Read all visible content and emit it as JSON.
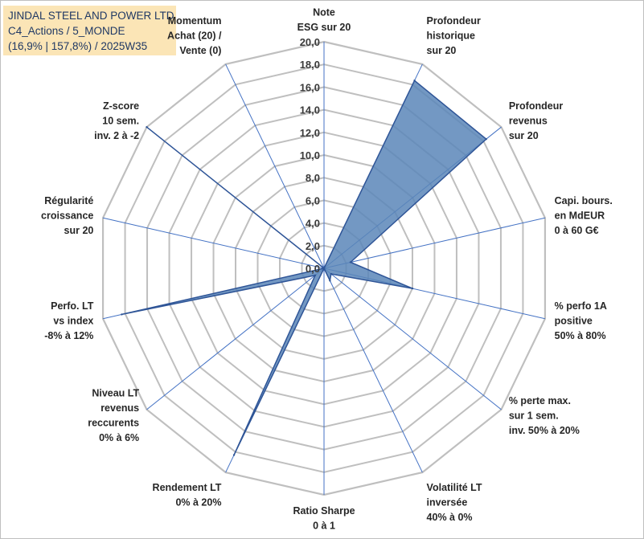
{
  "header": {
    "line1": "JINDAL STEEL AND POWER LTD",
    "line2": "C4_Actions / 5_MONDE",
    "line3": "(16,9% | 157,8%) / 2025W35"
  },
  "colors": {
    "grid": "#bfbfbf",
    "spoke": "#4472c4",
    "fill": "#5b86b8",
    "stroke": "#2f5597",
    "title_bg": "#fbe5b6"
  },
  "chart_data": {
    "type": "radar",
    "rmin": 0,
    "rmax": 20,
    "tick_step": 2,
    "tick_labels": [
      "0,0",
      "2,0",
      "4,0",
      "6,0",
      "8,0",
      "10,0",
      "12,0",
      "14,0",
      "16,0",
      "18,0",
      "20,0"
    ],
    "grid": true,
    "legend": "none",
    "axes": [
      {
        "label": [
          "Note",
          "ESG sur 20"
        ],
        "value": 0
      },
      {
        "label": [
          "Profondeur",
          "historique",
          "sur 20"
        ],
        "value": 18.4
      },
      {
        "label": [
          "Profondeur",
          "revenus",
          "sur 20"
        ],
        "value": 18.3
      },
      {
        "label": [
          "Capi. bours.",
          "en MdEUR",
          "0 à 60 G€"
        ],
        "value": 2.4
      },
      {
        "label": [
          "% perfo 1A",
          "positive",
          "50% à 80%"
        ],
        "value": 8.0
      },
      {
        "label": [
          "% perte max.",
          "sur 1 sem.",
          "inv. 50% à 20%"
        ],
        "value": 0.8
      },
      {
        "label": [
          "Volatilité LT",
          "inversée",
          "40% à 0%"
        ],
        "value": 1.2
      },
      {
        "label": [
          "Ratio Sharpe",
          "0 à 1"
        ],
        "value": 0
      },
      {
        "label": [
          "Rendement LT",
          "0% à 20%"
        ],
        "value": 18.3
      },
      {
        "label": [
          "Niveau LT",
          "revenus",
          "reccurents",
          "0% à 6%"
        ],
        "value": 1.0
      },
      {
        "label": [
          "Perfo. LT",
          "vs index",
          "-8% à 12%"
        ],
        "value": 18.3
      },
      {
        "label": [
          "Régularité",
          "croissance",
          "sur 20"
        ],
        "value": 0
      },
      {
        "label": [
          "Z-score",
          "10 sem.",
          "inv. 2 à -2"
        ],
        "value": 20.0
      },
      {
        "label": [
          "Momentum",
          "Achat (20) /",
          "Vente (0)"
        ],
        "value": 0
      }
    ]
  }
}
